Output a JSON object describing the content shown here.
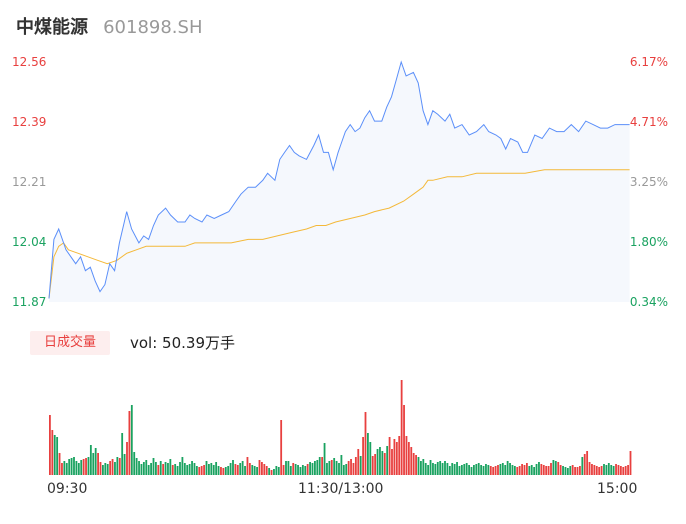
{
  "stock": {
    "name": "中煤能源",
    "code": "601898.SH"
  },
  "indicator": {
    "tab_label": "日成交量",
    "volume_label": "vol: 50.39万手"
  },
  "colors": {
    "up": "#e8403f",
    "down": "#1aa260",
    "flat": "#999999",
    "price_line": "#5b8ff9",
    "avg_line": "#f4b93a",
    "area": "#f5f8fd"
  },
  "chart_data": {
    "type": "line",
    "y_left_ticks": [
      "12.56",
      "12.39",
      "12.21",
      "12.04",
      "11.87"
    ],
    "y_right_ticks": [
      "6.17%",
      "4.71%",
      "3.25%",
      "1.80%",
      "0.34%"
    ],
    "x_ticks": [
      "09:30",
      "11:30/13:00",
      "15:00"
    ],
    "ylim": [
      11.87,
      12.56
    ],
    "total_minutes": 240,
    "price": [
      [
        0,
        11.88
      ],
      [
        2,
        12.05
      ],
      [
        4,
        12.08
      ],
      [
        7,
        12.02
      ],
      [
        9,
        12.0
      ],
      [
        11,
        11.98
      ],
      [
        13,
        12.0
      ],
      [
        15,
        11.96
      ],
      [
        17,
        11.97
      ],
      [
        19,
        11.93
      ],
      [
        21,
        11.9
      ],
      [
        23,
        11.92
      ],
      [
        25,
        11.98
      ],
      [
        27,
        11.96
      ],
      [
        29,
        12.04
      ],
      [
        31,
        12.1
      ],
      [
        32,
        12.13
      ],
      [
        34,
        12.08
      ],
      [
        37,
        12.04
      ],
      [
        39,
        12.06
      ],
      [
        41,
        12.05
      ],
      [
        43,
        12.09
      ],
      [
        45,
        12.12
      ],
      [
        48,
        12.14
      ],
      [
        50,
        12.12
      ],
      [
        53,
        12.1
      ],
      [
        56,
        12.1
      ],
      [
        58,
        12.12
      ],
      [
        60,
        12.11
      ],
      [
        63,
        12.1
      ],
      [
        65,
        12.12
      ],
      [
        68,
        12.11
      ],
      [
        71,
        12.12
      ],
      [
        74,
        12.13
      ],
      [
        77,
        12.16
      ],
      [
        79,
        12.18
      ],
      [
        82,
        12.2
      ],
      [
        85,
        12.2
      ],
      [
        88,
        12.22
      ],
      [
        90,
        12.24
      ],
      [
        93,
        12.22
      ],
      [
        95,
        12.28
      ],
      [
        97,
        12.3
      ],
      [
        99,
        12.32
      ],
      [
        101,
        12.3
      ],
      [
        103,
        12.29
      ],
      [
        106,
        12.28
      ],
      [
        109,
        12.32
      ],
      [
        111,
        12.35
      ],
      [
        113,
        12.3
      ],
      [
        115,
        12.3
      ],
      [
        117,
        12.25
      ],
      [
        119,
        12.3
      ],
      [
        120,
        12.32
      ],
      [
        122,
        12.36
      ],
      [
        124,
        12.38
      ],
      [
        126,
        12.36
      ],
      [
        128,
        12.37
      ],
      [
        130,
        12.4
      ],
      [
        132,
        12.42
      ],
      [
        134,
        12.39
      ],
      [
        137,
        12.39
      ],
      [
        139,
        12.43
      ],
      [
        141,
        12.46
      ],
      [
        143,
        12.51
      ],
      [
        145,
        12.56
      ],
      [
        147,
        12.52
      ],
      [
        150,
        12.53
      ],
      [
        152,
        12.5
      ],
      [
        154,
        12.42
      ],
      [
        156,
        12.38
      ],
      [
        158,
        12.42
      ],
      [
        160,
        12.41
      ],
      [
        163,
        12.39
      ],
      [
        165,
        12.41
      ],
      [
        167,
        12.37
      ],
      [
        170,
        12.38
      ],
      [
        173,
        12.35
      ],
      [
        176,
        12.36
      ],
      [
        179,
        12.38
      ],
      [
        181,
        12.36
      ],
      [
        184,
        12.35
      ],
      [
        186,
        12.34
      ],
      [
        188,
        12.31
      ],
      [
        190,
        12.34
      ],
      [
        193,
        12.33
      ],
      [
        195,
        12.3
      ],
      [
        197,
        12.3
      ],
      [
        200,
        12.35
      ],
      [
        203,
        12.34
      ],
      [
        206,
        12.37
      ],
      [
        209,
        12.36
      ],
      [
        212,
        12.36
      ],
      [
        215,
        12.38
      ],
      [
        218,
        12.36
      ],
      [
        221,
        12.39
      ],
      [
        224,
        12.38
      ],
      [
        227,
        12.37
      ],
      [
        230,
        12.37
      ],
      [
        233,
        12.38
      ],
      [
        236,
        12.38
      ],
      [
        239,
        12.38
      ]
    ],
    "avg": [
      [
        0,
        11.88
      ],
      [
        2,
        12.0
      ],
      [
        4,
        12.03
      ],
      [
        6,
        12.04
      ],
      [
        8,
        12.02
      ],
      [
        12,
        12.01
      ],
      [
        16,
        12.0
      ],
      [
        20,
        11.99
      ],
      [
        24,
        11.98
      ],
      [
        28,
        11.99
      ],
      [
        32,
        12.01
      ],
      [
        36,
        12.02
      ],
      [
        40,
        12.03
      ],
      [
        48,
        12.03
      ],
      [
        56,
        12.03
      ],
      [
        60,
        12.04
      ],
      [
        70,
        12.04
      ],
      [
        75,
        12.04
      ],
      [
        82,
        12.05
      ],
      [
        88,
        12.05
      ],
      [
        94,
        12.06
      ],
      [
        100,
        12.07
      ],
      [
        106,
        12.08
      ],
      [
        110,
        12.09
      ],
      [
        114,
        12.09
      ],
      [
        118,
        12.1
      ],
      [
        124,
        12.11
      ],
      [
        130,
        12.12
      ],
      [
        134,
        12.13
      ],
      [
        140,
        12.14
      ],
      [
        146,
        12.16
      ],
      [
        150,
        12.18
      ],
      [
        152,
        12.19
      ],
      [
        154,
        12.2
      ],
      [
        156,
        12.22
      ],
      [
        158,
        12.22
      ],
      [
        164,
        12.23
      ],
      [
        170,
        12.23
      ],
      [
        176,
        12.24
      ],
      [
        186,
        12.24
      ],
      [
        196,
        12.24
      ],
      [
        204,
        12.25
      ],
      [
        212,
        12.25
      ],
      [
        220,
        12.25
      ],
      [
        230,
        12.25
      ],
      [
        239,
        12.25
      ]
    ],
    "volume": [
      60,
      45,
      40,
      38,
      22,
      12,
      14,
      12,
      16,
      17,
      18,
      14,
      12,
      15,
      16,
      17,
      18,
      30,
      22,
      27,
      22,
      13,
      10,
      12,
      11,
      14,
      16,
      13,
      18,
      17,
      42,
      21,
      33,
      64,
      70,
      23,
      17,
      14,
      11,
      13,
      15,
      10,
      12,
      17,
      13,
      10,
      14,
      11,
      13,
      12,
      16,
      10,
      11,
      9,
      13,
      18,
      12,
      10,
      11,
      14,
      12,
      9,
      8,
      9,
      10,
      14,
      11,
      12,
      10,
      13,
      9,
      8,
      7,
      8,
      9,
      12,
      15,
      11,
      10,
      12,
      14,
      9,
      18,
      12,
      10,
      9,
      8,
      15,
      13,
      11,
      9,
      7,
      5,
      6,
      9,
      8,
      55,
      10,
      14,
      14,
      9,
      12,
      11,
      10,
      8,
      10,
      9,
      11,
      13,
      12,
      14,
      15,
      18,
      18,
      32,
      12,
      14,
      15,
      17,
      14,
      12,
      20,
      10,
      11,
      14,
      16,
      12,
      18,
      26,
      19,
      38,
      63,
      42,
      33,
      19,
      21,
      26,
      28,
      24,
      22,
      29,
      38,
      26,
      36,
      33,
      39,
      95,
      70,
      39,
      33,
      28,
      22,
      20,
      18,
      14,
      16,
      12,
      10,
      15,
      12,
      11,
      13,
      14,
      12,
      14,
      12,
      9,
      12,
      11,
      13,
      9,
      10,
      11,
      12,
      10,
      8,
      10,
      11,
      12,
      10,
      9,
      11,
      10,
      9,
      8,
      9,
      10,
      11,
      12,
      10,
      14,
      12,
      10,
      9,
      8,
      9,
      11,
      10,
      12,
      9,
      10,
      8,
      11,
      13,
      11,
      10,
      9,
      9,
      12,
      15,
      14,
      13,
      10,
      9,
      8,
      7,
      9,
      10,
      8,
      8,
      9,
      18,
      21,
      24,
      13,
      11,
      10,
      9,
      8,
      9,
      11,
      10,
      12,
      10,
      9,
      11,
      10,
      9,
      8,
      9,
      10,
      24
    ],
    "volume_colors": "rrggrrggggggggrrggggrrgggrrggrggrrgggggggggggrgrgggrggggggggggrrrggggggrrggggrrgggrrgggrrrrgrgggrrgggrgggggrgggggrgggrggggggrrrrrgrrggrrgggrgrrrrrrrrrrrrggggggggggggggggggggggggggggggrrrrgggggggrrrrrgggggrrrrrggrrggggrrrrgrrrrrrrrgggggrrrrrrrrgggggggggr"
  }
}
